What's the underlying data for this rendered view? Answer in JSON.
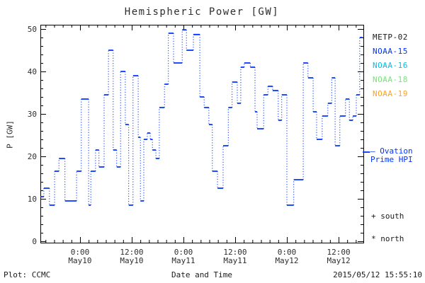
{
  "chart": {
    "title": "Hemispheric Power [GW]",
    "xlabel": "Date and Time",
    "ylabel": "P [GW]"
  },
  "footer": {
    "left": "Plot: CCMC",
    "right": "2015/05/12 15:55:10"
  },
  "legend": {
    "satellites": [
      {
        "label": "METP-02",
        "color": "#1a1a1a"
      },
      {
        "label": "NOAA-15",
        "color": "#0033ff"
      },
      {
        "label": "NOAA-16",
        "color": "#00bfe8"
      },
      {
        "label": "NOAA-18",
        "color": "#73e673"
      },
      {
        "label": "NOAA-19",
        "color": "#ffa21f"
      }
    ],
    "ovation_line1": "– Ovation",
    "ovation_line2": "Prime HPI",
    "ovation_color": "#0033ff",
    "south": "+ south",
    "north": "* north"
  },
  "chart_data": {
    "type": "line",
    "subtype": "step",
    "title": "Hemispheric Power [GW]",
    "xlabel": "Date and Time",
    "ylabel": "P [GW]",
    "ylim": [
      0,
      50
    ],
    "y_major_ticks": [
      0,
      10,
      20,
      30,
      40,
      50
    ],
    "y_minor_step_gw": 2,
    "x_hours_relative_to": "2015-05-10 00:00",
    "x_range_hours": [
      -9.2,
      65.75
    ],
    "x_minor_step_hours": 2,
    "x_major_ticks": [
      {
        "hours": 0,
        "time": "0:00",
        "date": "May10"
      },
      {
        "hours": 12,
        "time": "12:00",
        "date": "May10"
      },
      {
        "hours": 24,
        "time": "0:00",
        "date": "May11"
      },
      {
        "hours": 36,
        "time": "12:00",
        "date": "May11"
      },
      {
        "hours": 48,
        "time": "0:00",
        "date": "May12"
      },
      {
        "hours": 60,
        "time": "12:00",
        "date": "May12"
      }
    ],
    "grid": false,
    "legend_position": "right-outside",
    "line_color": "#0033ff",
    "series": [
      {
        "name": "Hemispheric Power (satellite steps)",
        "color": "#0033ff",
        "t_end_hours": 65.6,
        "steps": [
          [
            -9.2,
            10.5
          ],
          [
            -8.4,
            12.5
          ],
          [
            -7.1,
            8.5
          ],
          [
            -5.9,
            16.5
          ],
          [
            -4.9,
            19.5
          ],
          [
            -3.5,
            9.5
          ],
          [
            -0.8,
            16.5
          ],
          [
            0.3,
            33.5
          ],
          [
            2.0,
            8.5
          ],
          [
            2.5,
            16.5
          ],
          [
            3.6,
            21.5
          ],
          [
            4.4,
            17.5
          ],
          [
            5.6,
            34.5
          ],
          [
            6.6,
            45
          ],
          [
            7.7,
            21.5
          ],
          [
            8.5,
            17.5
          ],
          [
            9.4,
            40
          ],
          [
            10.5,
            27.5
          ],
          [
            11.3,
            8.5
          ],
          [
            12.3,
            39
          ],
          [
            13.5,
            24.5
          ],
          [
            14.0,
            9.5
          ],
          [
            14.8,
            24
          ],
          [
            15.6,
            25.5
          ],
          [
            16.3,
            24
          ],
          [
            16.8,
            21.5
          ],
          [
            17.6,
            19.5
          ],
          [
            18.4,
            31.5
          ],
          [
            19.6,
            37
          ],
          [
            20.5,
            49
          ],
          [
            21.7,
            42
          ],
          [
            23.7,
            49.8
          ],
          [
            24.7,
            45
          ],
          [
            26.3,
            48.7
          ],
          [
            27.8,
            34
          ],
          [
            28.8,
            31.5
          ],
          [
            29.9,
            27.5
          ],
          [
            30.7,
            16.5
          ],
          [
            31.9,
            12.5
          ],
          [
            33.2,
            22.5
          ],
          [
            34.4,
            31.5
          ],
          [
            35.3,
            37.5
          ],
          [
            36.5,
            32.5
          ],
          [
            37.3,
            41
          ],
          [
            38.1,
            42
          ],
          [
            39.5,
            41
          ],
          [
            40.6,
            30.5
          ],
          [
            41.1,
            26.5
          ],
          [
            42.6,
            34.5
          ],
          [
            43.6,
            36.5
          ],
          [
            44.7,
            35.5
          ],
          [
            46.0,
            28.5
          ],
          [
            46.8,
            34.5
          ],
          [
            48.0,
            8.5
          ],
          [
            49.6,
            14.5
          ],
          [
            51.8,
            42
          ],
          [
            52.9,
            38.5
          ],
          [
            54.1,
            30.5
          ],
          [
            54.9,
            24
          ],
          [
            56.2,
            29.5
          ],
          [
            57.5,
            32.5
          ],
          [
            58.4,
            38.5
          ],
          [
            59.2,
            22.5
          ],
          [
            60.3,
            29.5
          ],
          [
            61.6,
            33.5
          ],
          [
            62.5,
            28.5
          ],
          [
            63.3,
            29.5
          ],
          [
            64.1,
            34.5
          ],
          [
            64.9,
            48
          ]
        ]
      }
    ],
    "ovation_marker": {
      "t_start_hours": 65.6,
      "t_end_hours": 67.3,
      "value_gw": 21
    }
  }
}
